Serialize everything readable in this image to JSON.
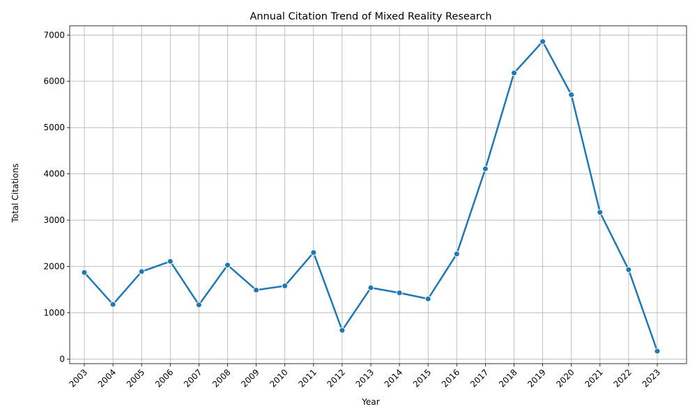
{
  "chart_data": {
    "type": "line",
    "title": "Annual Citation Trend of Mixed Reality Research",
    "xlabel": "Year",
    "ylabel": "Total Citations",
    "categories": [
      "2003",
      "2004",
      "2005",
      "2006",
      "2007",
      "2008",
      "2009",
      "2010",
      "2011",
      "2012",
      "2013",
      "2014",
      "2015",
      "2016",
      "2017",
      "2018",
      "2019",
      "2020",
      "2021",
      "2022",
      "2023"
    ],
    "series": [
      {
        "values": [
          1870,
          1180,
          1890,
          2110,
          1170,
          2030,
          1490,
          1580,
          2300,
          620,
          1540,
          1430,
          1300,
          2270,
          4110,
          6180,
          6860,
          5710,
          3170,
          1930,
          170
        ],
        "color": "#1f77b4",
        "marker": "circle"
      }
    ],
    "yticks": [
      0,
      1000,
      2000,
      3000,
      4000,
      5000,
      6000,
      7000
    ],
    "ylim": [
      -100,
      7200
    ],
    "grid": true,
    "legend": "none",
    "xtick_rotation": 45
  }
}
